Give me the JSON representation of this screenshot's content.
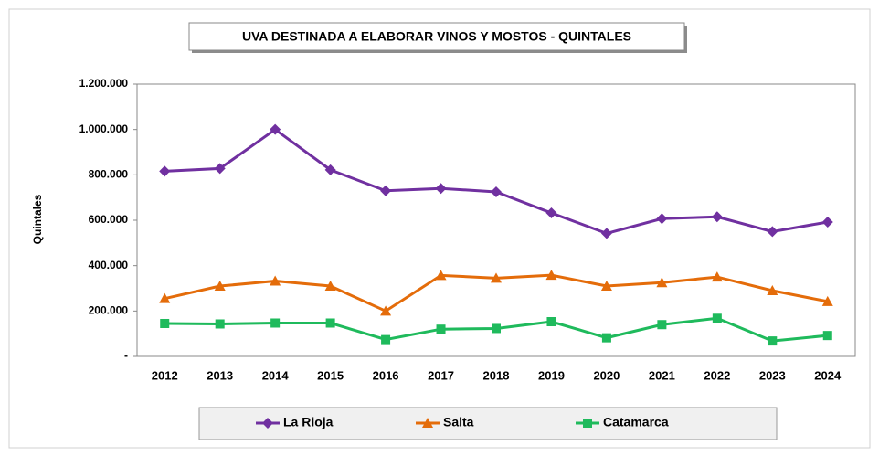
{
  "chart_data": {
    "type": "line",
    "title": "UVA DESTINADA A ELABORAR VINOS Y MOSTOS - QUINTALES",
    "y_label": "Quintales",
    "categories": [
      "2012",
      "2013",
      "2014",
      "2015",
      "2016",
      "2017",
      "2018",
      "2019",
      "2020",
      "2021",
      "2022",
      "2023",
      "2024"
    ],
    "series": [
      {
        "name": "La Rioja",
        "color": "#7030a0",
        "marker": "diamond",
        "values": [
          816000,
          828000,
          1000000,
          822000,
          730000,
          740000,
          725000,
          632000,
          542000,
          607000,
          615000,
          550000,
          592000
        ]
      },
      {
        "name": "Salta",
        "color": "#e46c0a",
        "marker": "triangle",
        "values": [
          255000,
          310000,
          332000,
          310000,
          200000,
          357000,
          345000,
          358000,
          310000,
          325000,
          350000,
          290000,
          242000
        ]
      },
      {
        "name": "Catamarca",
        "color": "#1fba5c",
        "marker": "square",
        "values": [
          145000,
          143000,
          147000,
          147000,
          74000,
          120000,
          123000,
          153000,
          82000,
          140000,
          168000,
          68000,
          92000
        ]
      }
    ],
    "ylim": [
      0,
      1200000
    ],
    "yticks": [
      {
        "value": 0,
        "label": "-"
      },
      {
        "value": 200000,
        "label": "200.000"
      },
      {
        "value": 400000,
        "label": "400.000"
      },
      {
        "value": 600000,
        "label": "600.000"
      },
      {
        "value": 800000,
        "label": "800.000"
      },
      {
        "value": 1000000,
        "label": "1.000.000"
      },
      {
        "value": 1200000,
        "label": "1.200.000"
      }
    ],
    "grid": false
  }
}
